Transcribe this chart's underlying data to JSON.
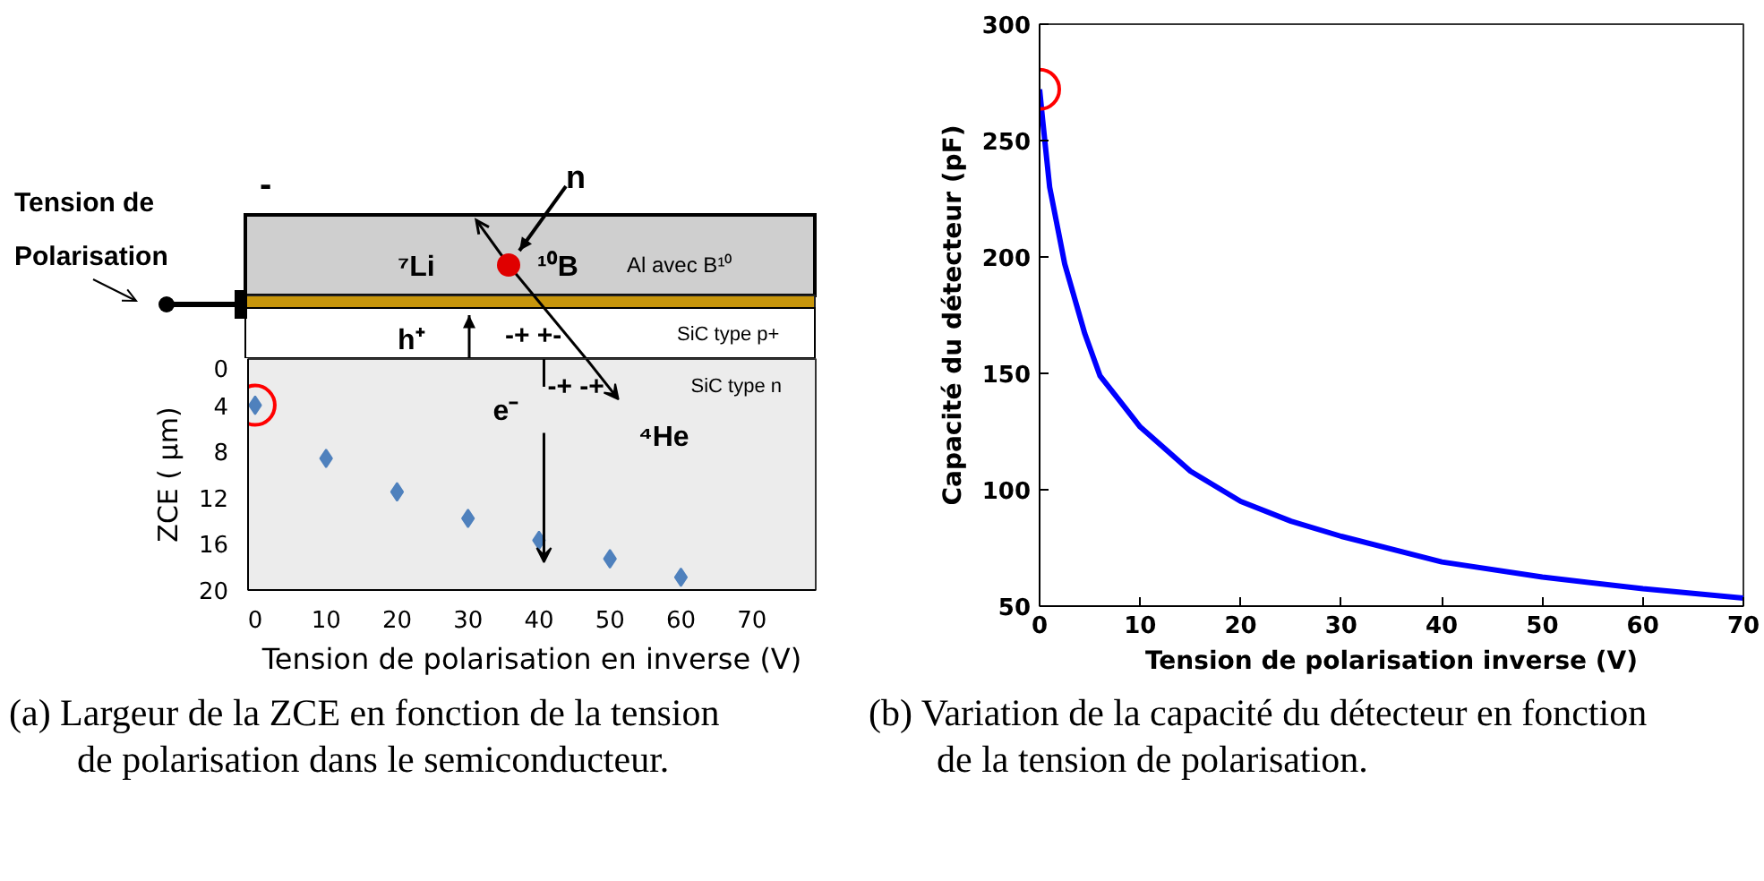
{
  "chart_data": [
    {
      "type": "scatter",
      "xlabel": "Tension de polarisation en inverse (V)",
      "ylabel": "ZCE ( µm)",
      "marker": "diamond",
      "color": "#4f81bd",
      "grid": false,
      "x": [
        0,
        10,
        20,
        30,
        40,
        50,
        60
      ],
      "values": [
        4,
        8.6,
        11.5,
        13.8,
        15.7,
        17.3,
        18.9
      ],
      "xlim": [
        -1,
        79
      ],
      "xticks": [
        0,
        10,
        20,
        30,
        40,
        50,
        60,
        70
      ],
      "ylim": [
        20,
        0
      ],
      "yticks": [
        0,
        4,
        8,
        12,
        16,
        20
      ],
      "annotations": [
        "Tension de Polarisation",
        "-",
        "n",
        "⁷Li",
        "¹⁰B",
        "Al avec B¹⁰",
        "h⁺",
        "-+  +-",
        "SiC type p+",
        "-+  -+",
        "SiC type n",
        "e⁻",
        "⁴He",
        "(a) Largeur de la ZCE en fonction de la tension de polarisation dans le semiconducteur."
      ]
    },
    {
      "type": "line",
      "xlabel": "Tension de polarisation inverse (V)",
      "ylabel": "Capacité du détecteur (pF)",
      "color": "#0000ff",
      "grid": false,
      "x": [
        0,
        0.3,
        1,
        2.5,
        4.5,
        6,
        8,
        10,
        15,
        20,
        25,
        30,
        40,
        50,
        60,
        70
      ],
      "values": [
        272,
        259,
        230,
        197,
        167,
        149,
        138,
        127,
        108,
        95,
        86.5,
        80,
        69,
        62.5,
        57.5,
        53.5
      ],
      "xlim": [
        0,
        70
      ],
      "xticks": [
        0,
        10,
        20,
        30,
        40,
        50,
        60,
        70
      ],
      "ylim": [
        50,
        300
      ],
      "yticks": [
        50,
        100,
        150,
        200,
        250,
        300
      ],
      "annotations": [
        "(b) Variation de la capacité du détecteur en fonction de la tension de polarisation."
      ]
    }
  ]
}
